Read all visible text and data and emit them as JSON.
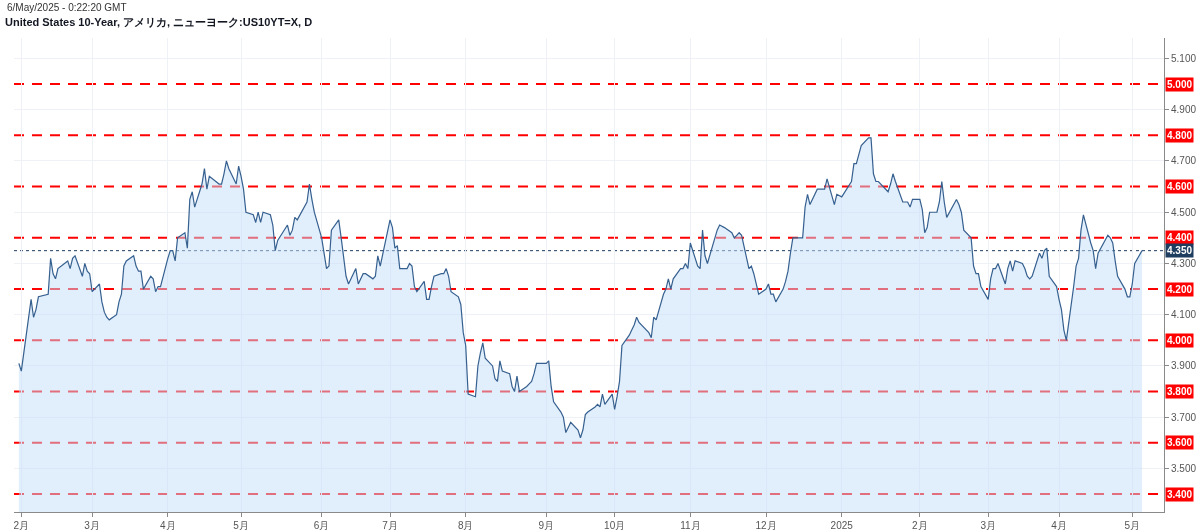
{
  "chart_data": {
    "type": "area",
    "title": "United States 10-Year, アメリカ, ニューヨーク:US10YT=X, D",
    "annotations": [
      "6/May/2025 - 0:22:20 GMT"
    ],
    "color": "#36608f",
    "x": [
      "2024-01-31",
      "2024-02-01",
      "2024-02-05",
      "2024-02-06",
      "2024-02-07",
      "2024-02-08",
      "2024-02-12",
      "2024-02-13",
      "2024-02-14",
      "2024-02-15",
      "2024-02-16",
      "2024-02-20",
      "2024-02-21",
      "2024-02-22",
      "2024-02-23",
      "2024-02-26",
      "2024-02-27",
      "2024-02-28",
      "2024-02-29",
      "2024-03-01",
      "2024-03-04",
      "2024-03-05",
      "2024-03-06",
      "2024-03-07",
      "2024-03-08",
      "2024-03-11",
      "2024-03-12",
      "2024-03-13",
      "2024-03-14",
      "2024-03-15",
      "2024-03-18",
      "2024-03-19",
      "2024-03-20",
      "2024-03-21",
      "2024-03-22",
      "2024-03-25",
      "2024-03-26",
      "2024-03-27",
      "2024-03-28",
      "2024-03-29",
      "2024-04-01",
      "2024-04-02",
      "2024-04-03",
      "2024-04-04",
      "2024-04-05",
      "2024-04-08",
      "2024-04-09",
      "2024-04-10",
      "2024-04-11",
      "2024-04-12",
      "2024-04-15",
      "2024-04-16",
      "2024-04-17",
      "2024-04-18",
      "2024-04-22",
      "2024-04-23",
      "2024-04-24",
      "2024-04-25",
      "2024-04-26",
      "2024-04-29",
      "2024-04-30",
      "2024-05-01",
      "2024-05-02",
      "2024-05-03",
      "2024-05-06",
      "2024-05-07",
      "2024-05-08",
      "2024-05-09",
      "2024-05-10",
      "2024-05-13",
      "2024-05-14",
      "2024-05-15",
      "2024-05-16",
      "2024-05-20",
      "2024-05-21",
      "2024-05-22",
      "2024-05-23",
      "2024-05-24",
      "2024-05-28",
      "2024-05-29",
      "2024-05-30",
      "2024-05-31",
      "2024-06-03",
      "2024-06-05",
      "2024-06-06",
      "2024-06-07",
      "2024-06-10",
      "2024-06-11",
      "2024-06-13",
      "2024-06-14",
      "2024-06-17",
      "2024-06-18",
      "2024-06-20",
      "2024-06-21",
      "2024-06-24",
      "2024-06-25",
      "2024-06-26",
      "2024-06-27",
      "2024-07-01",
      "2024-07-02",
      "2024-07-03",
      "2024-07-04",
      "2024-07-05",
      "2024-07-08",
      "2024-07-09",
      "2024-07-10",
      "2024-07-11",
      "2024-07-12",
      "2024-07-15",
      "2024-07-16",
      "2024-07-17",
      "2024-07-18",
      "2024-07-19",
      "2024-07-22",
      "2024-07-23",
      "2024-07-24",
      "2024-07-25",
      "2024-07-26",
      "2024-07-29",
      "2024-07-30",
      "2024-07-31",
      "2024-08-01",
      "2024-08-02",
      "2024-08-05",
      "2024-08-06",
      "2024-08-07",
      "2024-08-08",
      "2024-08-09",
      "2024-08-12",
      "2024-08-13",
      "2024-08-14",
      "2024-08-15",
      "2024-08-16",
      "2024-08-19",
      "2024-08-20",
      "2024-08-21",
      "2024-08-22",
      "2024-08-23",
      "2024-08-26",
      "2024-08-27",
      "2024-08-28",
      "2024-08-29",
      "2024-08-30",
      "2024-09-03",
      "2024-09-04",
      "2024-09-05",
      "2024-09-06",
      "2024-09-09",
      "2024-09-10",
      "2024-09-11",
      "2024-09-12",
      "2024-09-13",
      "2024-09-16",
      "2024-09-17",
      "2024-09-18",
      "2024-09-19",
      "2024-09-20",
      "2024-09-23",
      "2024-09-24",
      "2024-09-25",
      "2024-09-26",
      "2024-09-27",
      "2024-09-30",
      "2024-10-01",
      "2024-10-02",
      "2024-10-03",
      "2024-10-04",
      "2024-10-07",
      "2024-10-08",
      "2024-10-09",
      "2024-10-10",
      "2024-10-11",
      "2024-10-15",
      "2024-10-16",
      "2024-10-17",
      "2024-10-18",
      "2024-10-21",
      "2024-10-22",
      "2024-10-23",
      "2024-10-24",
      "2024-10-25",
      "2024-10-28",
      "2024-10-29",
      "2024-10-30",
      "2024-10-31",
      "2024-11-01",
      "2024-11-04",
      "2024-11-05",
      "2024-11-06",
      "2024-11-07",
      "2024-11-08",
      "2024-11-12",
      "2024-11-13",
      "2024-11-15",
      "2024-11-18",
      "2024-11-19",
      "2024-11-20",
      "2024-11-21",
      "2024-11-22",
      "2024-11-25",
      "2024-11-26",
      "2024-11-27",
      "2024-11-29",
      "2024-12-02",
      "2024-12-03",
      "2024-12-04",
      "2024-12-05",
      "2024-12-06",
      "2024-12-09",
      "2024-12-10",
      "2024-12-11",
      "2024-12-12",
      "2024-12-13",
      "2024-12-16",
      "2024-12-17",
      "2024-12-18",
      "2024-12-19",
      "2024-12-20",
      "2024-12-23",
      "2024-12-26",
      "2024-12-27",
      "2024-12-30",
      "2024-12-31",
      "2025-01-02",
      "2025-01-06",
      "2025-01-07",
      "2025-01-08",
      "2025-01-10",
      "2025-01-13",
      "2025-01-14",
      "2025-01-15",
      "2025-01-16",
      "2025-01-17",
      "2025-01-21",
      "2025-01-22",
      "2025-01-23",
      "2025-01-24",
      "2025-01-27",
      "2025-01-29",
      "2025-01-30",
      "2025-01-31",
      "2025-02-03",
      "2025-02-04",
      "2025-02-05",
      "2025-02-06",
      "2025-02-07",
      "2025-02-10",
      "2025-02-11",
      "2025-02-12",
      "2025-02-13",
      "2025-02-14",
      "2025-02-18",
      "2025-02-19",
      "2025-02-20",
      "2025-02-21",
      "2025-02-24",
      "2025-02-25",
      "2025-02-26",
      "2025-02-27",
      "2025-02-28",
      "2025-03-03",
      "2025-03-04",
      "2025-03-05",
      "2025-03-06",
      "2025-03-07",
      "2025-03-10",
      "2025-03-11",
      "2025-03-12",
      "2025-03-13",
      "2025-03-14",
      "2025-03-17",
      "2025-03-18",
      "2025-03-19",
      "2025-03-20",
      "2025-03-21",
      "2025-03-24",
      "2025-03-25",
      "2025-03-26",
      "2025-03-27",
      "2025-03-28",
      "2025-03-31",
      "2025-04-01",
      "2025-04-02",
      "2025-04-03",
      "2025-04-04",
      "2025-04-07",
      "2025-04-08",
      "2025-04-09",
      "2025-04-10",
      "2025-04-11",
      "2025-04-14",
      "2025-04-15",
      "2025-04-16",
      "2025-04-17",
      "2025-04-21",
      "2025-04-22",
      "2025-04-23",
      "2025-04-24",
      "2025-04-25",
      "2025-04-28",
      "2025-04-29",
      "2025-04-30",
      "2025-05-01",
      "2025-05-02",
      "2025-05-05"
    ],
    "values": [
      3.91,
      3.88,
      4.16,
      4.09,
      4.12,
      4.17,
      4.18,
      4.32,
      4.26,
      4.24,
      4.28,
      4.31,
      4.28,
      4.32,
      4.33,
      4.25,
      4.3,
      4.27,
      4.26,
      4.19,
      4.22,
      4.15,
      4.11,
      4.09,
      4.08,
      4.1,
      4.15,
      4.18,
      4.29,
      4.31,
      4.33,
      4.29,
      4.27,
      4.27,
      4.2,
      4.25,
      4.24,
      4.19,
      4.21,
      4.21,
      4.32,
      4.35,
      4.35,
      4.31,
      4.4,
      4.42,
      4.36,
      4.55,
      4.58,
      4.52,
      4.61,
      4.67,
      4.59,
      4.64,
      4.61,
      4.61,
      4.65,
      4.7,
      4.67,
      4.61,
      4.68,
      4.64,
      4.59,
      4.5,
      4.49,
      4.46,
      4.5,
      4.46,
      4.5,
      4.49,
      4.45,
      4.35,
      4.39,
      4.45,
      4.41,
      4.43,
      4.48,
      4.47,
      4.54,
      4.61,
      4.55,
      4.5,
      4.4,
      4.28,
      4.29,
      4.43,
      4.47,
      4.4,
      4.25,
      4.22,
      4.28,
      4.22,
      4.26,
      4.26,
      4.24,
      4.25,
      4.33,
      4.29,
      4.47,
      4.44,
      4.36,
      4.37,
      4.28,
      4.28,
      4.3,
      4.29,
      4.21,
      4.19,
      4.23,
      4.16,
      4.16,
      4.21,
      4.25,
      4.26,
      4.26,
      4.28,
      4.25,
      4.19,
      4.17,
      4.14,
      4.03,
      3.98,
      3.79,
      3.78,
      3.9,
      3.95,
      3.99,
      3.93,
      3.9,
      3.85,
      3.84,
      3.92,
      3.88,
      3.87,
      3.82,
      3.8,
      3.86,
      3.8,
      3.82,
      3.83,
      3.84,
      3.87,
      3.91,
      3.91,
      3.92,
      3.82,
      3.76,
      3.72,
      3.7,
      3.64,
      3.66,
      3.68,
      3.65,
      3.62,
      3.65,
      3.71,
      3.72,
      3.74,
      3.75,
      3.74,
      3.79,
      3.75,
      3.79,
      3.73,
      3.78,
      3.84,
      3.98,
      4.02,
      4.04,
      4.06,
      4.09,
      4.07,
      4.03,
      4.01,
      4.09,
      4.08,
      4.18,
      4.2,
      4.24,
      4.2,
      4.24,
      4.28,
      4.28,
      4.3,
      4.28,
      4.38,
      4.29,
      4.28,
      4.43,
      4.33,
      4.3,
      4.43,
      4.45,
      4.44,
      4.42,
      4.4,
      4.41,
      4.42,
      4.41,
      4.28,
      4.29,
      4.26,
      4.18,
      4.2,
      4.22,
      4.18,
      4.18,
      4.15,
      4.2,
      4.23,
      4.27,
      4.34,
      4.4,
      4.4,
      4.4,
      4.52,
      4.57,
      4.53,
      4.59,
      4.59,
      4.63,
      4.53,
      4.57,
      4.56,
      4.62,
      4.69,
      4.69,
      4.76,
      4.79,
      4.79,
      4.65,
      4.62,
      4.62,
      4.58,
      4.61,
      4.65,
      4.62,
      4.54,
      4.54,
      4.52,
      4.55,
      4.55,
      4.51,
      4.42,
      4.44,
      4.5,
      4.5,
      4.54,
      4.62,
      4.54,
      4.48,
      4.55,
      4.53,
      4.5,
      4.43,
      4.4,
      4.29,
      4.26,
      4.26,
      4.21,
      4.16,
      4.24,
      4.28,
      4.28,
      4.3,
      4.22,
      4.28,
      4.31,
      4.27,
      4.31,
      4.3,
      4.28,
      4.25,
      4.24,
      4.25,
      4.34,
      4.32,
      4.35,
      4.36,
      4.25,
      4.21,
      4.16,
      4.12,
      4.04,
      4.0,
      4.21,
      4.29,
      4.32,
      4.43,
      4.49,
      4.38,
      4.35,
      4.28,
      4.34,
      4.41,
      4.4,
      4.38,
      4.31,
      4.25,
      4.2,
      4.17,
      4.17,
      4.22,
      4.3,
      4.35
    ],
    "xlim": [
      "2024-01-29",
      "2025-05-14"
    ],
    "xticks": [
      {
        "value": "2024-02-01",
        "label": "2月"
      },
      {
        "value": "2024-03-01",
        "label": "3月"
      },
      {
        "value": "2024-04-01",
        "label": "4月"
      },
      {
        "value": "2024-05-01",
        "label": "5月"
      },
      {
        "value": "2024-06-03",
        "label": "6月"
      },
      {
        "value": "2024-07-01",
        "label": "7月"
      },
      {
        "value": "2024-08-01",
        "label": "8月"
      },
      {
        "value": "2024-09-03",
        "label": "9月"
      },
      {
        "value": "2024-10-01",
        "label": "10月"
      },
      {
        "value": "2024-11-01",
        "label": "11月"
      },
      {
        "value": "2024-12-02",
        "label": "12月"
      },
      {
        "value": "2025-01-02",
        "label": "2025"
      },
      {
        "value": "2025-02-03",
        "label": "2月"
      },
      {
        "value": "2025-03-03",
        "label": "3月"
      },
      {
        "value": "2025-04-01",
        "label": "4月"
      },
      {
        "value": "2025-05-01",
        "label": "5月"
      }
    ],
    "ylim": [
      3.33,
      5.18
    ],
    "yticks": [
      {
        "value": 3.5,
        "label": "3.500"
      },
      {
        "value": 3.7,
        "label": "3.700"
      },
      {
        "value": 3.9,
        "label": "3.900"
      },
      {
        "value": 4.1,
        "label": "4.100"
      },
      {
        "value": 4.3,
        "label": "4.300"
      },
      {
        "value": 4.5,
        "label": "4.500"
      },
      {
        "value": 4.7,
        "label": "4.700"
      },
      {
        "value": 4.9,
        "label": "4.900"
      },
      {
        "value": 5.1,
        "label": "5.100"
      }
    ],
    "grid": true,
    "ref_lines": [
      {
        "axis": "y",
        "value": 5.0,
        "label": "5.000",
        "color": "#ff0000",
        "line_style": "dashed"
      },
      {
        "axis": "y",
        "value": 4.8,
        "label": "4.800",
        "color": "#ff0000",
        "line_style": "dashed"
      },
      {
        "axis": "y",
        "value": 4.6,
        "label": "4.600",
        "color": "#ff0000",
        "line_style": "dashed"
      },
      {
        "axis": "y",
        "value": 4.4,
        "label": "4.400",
        "color": "#ff0000",
        "line_style": "dashed"
      },
      {
        "axis": "y",
        "value": 4.2,
        "label": "4.200",
        "color": "#ff0000",
        "line_style": "dashed"
      },
      {
        "axis": "y",
        "value": 4.0,
        "label": "4.000",
        "color": "#ff0000",
        "line_style": "dashed"
      },
      {
        "axis": "y",
        "value": 3.8,
        "label": "3.800",
        "color": "#ff0000",
        "line_style": "dashed"
      },
      {
        "axis": "y",
        "value": 3.6,
        "label": "3.600",
        "color": "#ff0000",
        "line_style": "dashed"
      },
      {
        "axis": "y",
        "value": 3.4,
        "label": "3.400",
        "color": "#ff0000",
        "line_style": "dashed"
      },
      {
        "axis": "y",
        "value": 4.35,
        "label": "4.350",
        "color": "#1e3d5f",
        "line_style": "dotted"
      }
    ]
  }
}
